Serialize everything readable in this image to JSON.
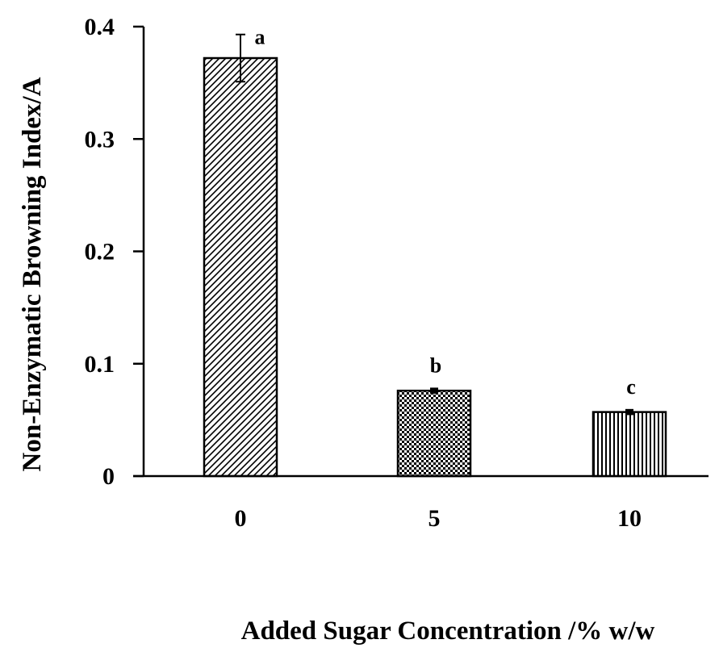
{
  "chart_data": {
    "type": "bar",
    "categories": [
      "0",
      "5",
      "10"
    ],
    "values": [
      0.372,
      0.076,
      0.057
    ],
    "errors": [
      0.021,
      0.002,
      0.002
    ],
    "significance_labels": [
      "a",
      "b",
      "c"
    ],
    "title": "",
    "xlabel": "Added Sugar Concentration /% w/w",
    "ylabel": "Non-Enzymatic Browning Index/A",
    "ylim": [
      0,
      0.4
    ],
    "yticks": [
      "0",
      "0.1",
      "0.2",
      "0.3",
      "0.4"
    ],
    "grid": false,
    "legend": "none",
    "bar_patterns": [
      "diagonal-hatch",
      "checkerboard",
      "vertical-lines"
    ],
    "colors": {
      "bar_fill": "#ffffff",
      "bar_stroke": "#000000",
      "axis": "#000000"
    }
  }
}
